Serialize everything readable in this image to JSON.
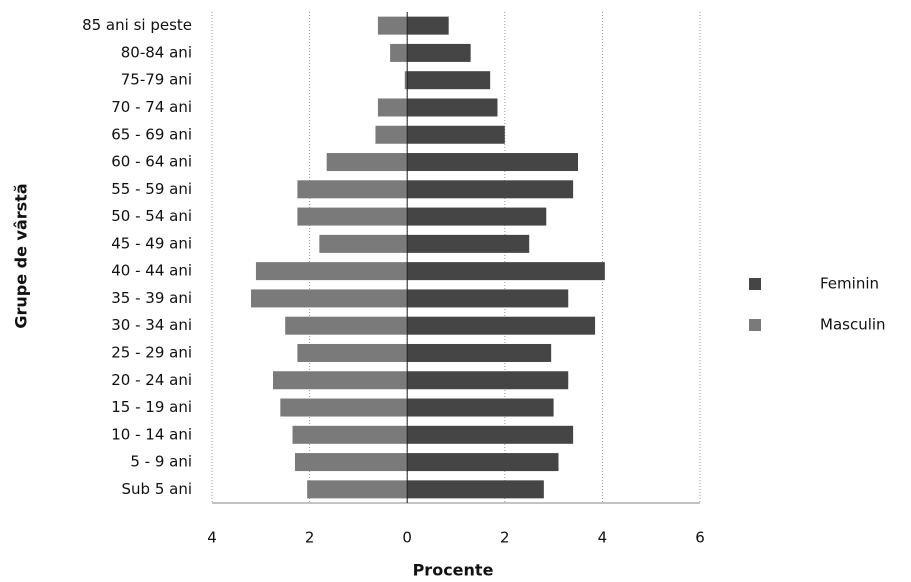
{
  "chart_data": {
    "type": "bar",
    "y_axis_label": "Grupe de vârstă",
    "x_axis_label": "Procente",
    "categories": [
      "Sub 5 ani",
      "5 - 9 ani",
      "10 - 14 ani",
      "15 - 19 ani",
      "20 - 24 ani",
      "25 - 29 ani",
      "30 - 34 ani",
      "35 - 39 ani",
      "40 - 44 ani",
      "45 - 49 ani",
      "50 - 54 ani",
      "55 - 59 ani",
      "60 - 64 ani",
      "65 - 69 ani",
      "70 - 74 ani",
      "75-79 ani",
      "80-84 ani",
      "85 ani si peste"
    ],
    "series": [
      {
        "name": "Feminin",
        "color": "#454545",
        "values": [
          2.8,
          3.1,
          3.4,
          3.0,
          3.3,
          2.95,
          3.85,
          3.3,
          4.05,
          2.5,
          2.85,
          3.4,
          3.5,
          2.0,
          1.85,
          1.7,
          1.3,
          0.85
        ]
      },
      {
        "name": "Masculin",
        "color": "#7a7a7a",
        "values": [
          -2.05,
          -2.3,
          -2.35,
          -2.6,
          -2.75,
          -2.25,
          -2.5,
          -3.2,
          -3.1,
          -1.8,
          -2.25,
          -2.25,
          -1.65,
          -0.65,
          -0.6,
          -0.05,
          -0.35,
          -0.6
        ]
      }
    ],
    "xlim": [
      -4,
      6
    ],
    "xticks": [
      {
        "value": -4,
        "label": "4"
      },
      {
        "value": -2,
        "label": "2"
      },
      0,
      2,
      4,
      6
    ],
    "grid": true,
    "legend": "right"
  }
}
